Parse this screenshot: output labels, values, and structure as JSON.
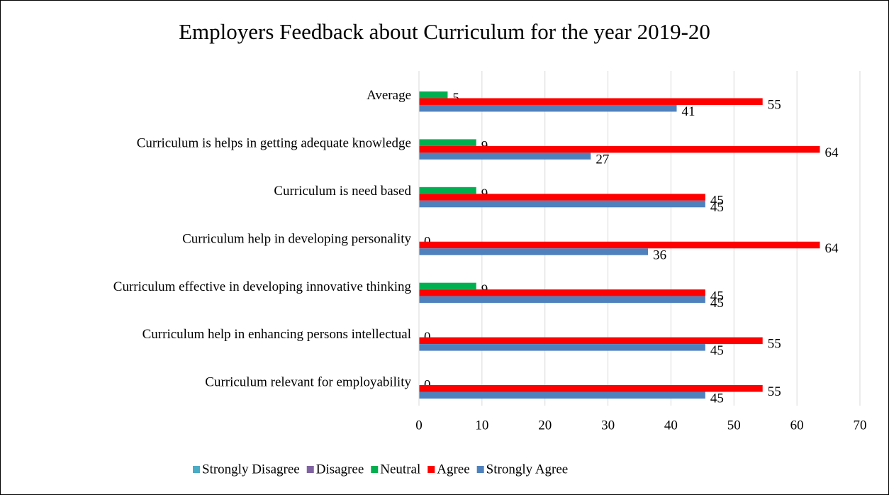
{
  "chart_data": {
    "type": "bar",
    "orientation": "horizontal",
    "title": "Employers Feedback about Curriculum for the year 2019-20",
    "categories": [
      "Average",
      "Curriculum is helps in getting adequate knowledge",
      "Curriculum is need based",
      "Curriculum help in developing personality",
      "Curriculum effective in developing innovative thinking",
      "Curriculum help in enhancing persons intellectual",
      "Curriculum relevant for employability"
    ],
    "series": [
      {
        "name": "Strongly Disagree",
        "color": "#4bacc6",
        "values": [
          0,
          0,
          0,
          0,
          0,
          0,
          0
        ]
      },
      {
        "name": "Disagree",
        "color": "#8064a2",
        "values": [
          0,
          0,
          0,
          0,
          0,
          0,
          0
        ]
      },
      {
        "name": "Neutral",
        "color": "#00b050",
        "values": [
          4.55,
          9.09,
          9.09,
          0,
          9.09,
          0,
          0
        ],
        "value_labels": [
          "5",
          "9",
          "9",
          "0",
          "9",
          "0",
          "0"
        ]
      },
      {
        "name": "Agree",
        "color": "#ff0000",
        "values": [
          54.55,
          63.64,
          45.45,
          63.64,
          45.45,
          54.55,
          54.55
        ],
        "value_labels": [
          "55",
          "64",
          "45",
          "64",
          "45",
          "55",
          "55"
        ]
      },
      {
        "name": "Strongly Agree",
        "color": "#4f81bd",
        "values": [
          40.91,
          27.27,
          45.45,
          36.36,
          45.45,
          45.45,
          45.45
        ],
        "value_labels": [
          "41",
          "27",
          "45",
          "36",
          "45",
          "45",
          "45"
        ]
      }
    ],
    "xlim": [
      0,
      70
    ],
    "xticks": [
      0,
      10,
      20,
      30,
      40,
      50,
      60,
      70
    ],
    "grid": true,
    "legend": "bottom"
  }
}
